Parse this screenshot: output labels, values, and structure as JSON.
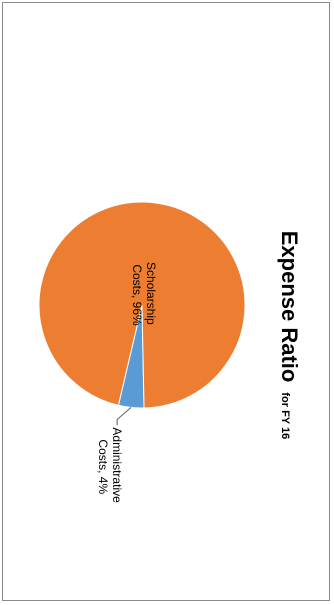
{
  "chart_data": {
    "type": "pie",
    "title": "Expense Ratio",
    "subtitle": "for FY 16",
    "slices": [
      {
        "label": "Scholarship Costs, 96%",
        "line1": "Scholarship",
        "line2": "Costs, 96%",
        "value": 96,
        "color": "#ED7D31"
      },
      {
        "label": "Administrative Costs, 4%",
        "line1": "Administrative",
        "line2": "Costs, 4%",
        "value": 4,
        "color": "#5B9BD5"
      }
    ],
    "legend": "none",
    "orientation": "rotated-90-clockwise"
  }
}
